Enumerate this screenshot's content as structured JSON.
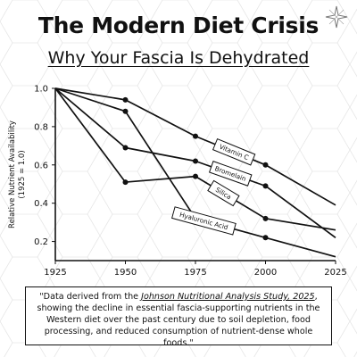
{
  "header": {
    "title": "The Modern Diet Crisis",
    "subtitle": "Why Your Fascia Is Dehydrated"
  },
  "logo": {
    "icon": "sparkle-star-icon"
  },
  "caption": {
    "prefix": "\"Data derived from the ",
    "source": "Johnson Nutritional Analysis Study, 2025",
    "suffix": ", showing the decline in essential fascia-supporting nutrients in the Western diet over the past century due to soil depletion, food processing, and reduced consumption of nutrient-dense whole foods.\""
  },
  "colors": {
    "line": "#111111",
    "background": "#ffffff",
    "pattern": "#e6e6e6"
  },
  "chart_data": {
    "type": "line",
    "title": "",
    "xlabel": "",
    "ylabel": "Relative Nutrient Availability\n(1925 = 1.0)",
    "x": [
      1925,
      1950,
      1975,
      2000,
      2025
    ],
    "xticks": [
      "1925",
      "1950",
      "1975",
      "2000",
      "2025"
    ],
    "yticks": [
      "0.2",
      "0.4",
      "0.6",
      "0.8",
      "1.0"
    ],
    "ylim": [
      0.1,
      1.0
    ],
    "grid": false,
    "series": [
      {
        "name": "Vitamin C",
        "values": [
          1.0,
          0.94,
          0.75,
          0.6,
          0.39
        ],
        "markers": [
          false,
          true,
          true,
          true,
          false
        ]
      },
      {
        "name": "Bromelain",
        "values": [
          1.0,
          0.69,
          0.62,
          0.49,
          0.22
        ],
        "markers": [
          false,
          true,
          true,
          true,
          false
        ]
      },
      {
        "name": "Silica",
        "values": [
          1.0,
          0.51,
          0.54,
          0.32,
          0.26
        ],
        "markers": [
          false,
          true,
          true,
          true,
          false
        ]
      },
      {
        "name": "Hyaluronic Acid",
        "values": [
          1.0,
          0.88,
          0.32,
          0.22,
          0.12
        ],
        "markers": [
          false,
          true,
          true,
          true,
          false
        ]
      }
    ]
  }
}
